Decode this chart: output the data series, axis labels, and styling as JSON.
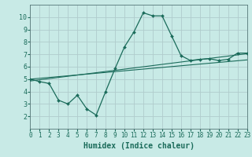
{
  "title": "",
  "xlabel": "Humidex (Indice chaleur)",
  "bg_color": "#c8eae6",
  "grid_color": "#b0cccc",
  "line_color": "#1a6b5a",
  "xmin": 0,
  "xmax": 23,
  "ymin": 1,
  "ymax": 11,
  "yticks": [
    2,
    3,
    4,
    5,
    6,
    7,
    8,
    9,
    10
  ],
  "xticks": [
    0,
    1,
    2,
    3,
    4,
    5,
    6,
    7,
    8,
    9,
    10,
    11,
    12,
    13,
    14,
    15,
    16,
    17,
    18,
    19,
    20,
    21,
    22,
    23
  ],
  "curve1_x": [
    0,
    1,
    2,
    3,
    4,
    5,
    6,
    7,
    8,
    9,
    10,
    11,
    12,
    13,
    14,
    15,
    16,
    17,
    18,
    19,
    20,
    21,
    22,
    23
  ],
  "curve1_y": [
    5.0,
    4.8,
    4.65,
    3.3,
    3.0,
    3.7,
    2.6,
    2.1,
    4.0,
    5.85,
    7.6,
    8.8,
    10.35,
    10.1,
    10.1,
    8.5,
    6.9,
    6.5,
    6.6,
    6.65,
    6.5,
    6.6,
    7.1,
    7.1
  ],
  "curve2_x": [
    0,
    23
  ],
  "curve2_y": [
    5.0,
    6.55
  ],
  "curve3_x": [
    0,
    23
  ],
  "curve3_y": [
    4.85,
    7.05
  ],
  "tick_fontsize": 5.5,
  "xlabel_fontsize": 7.0
}
